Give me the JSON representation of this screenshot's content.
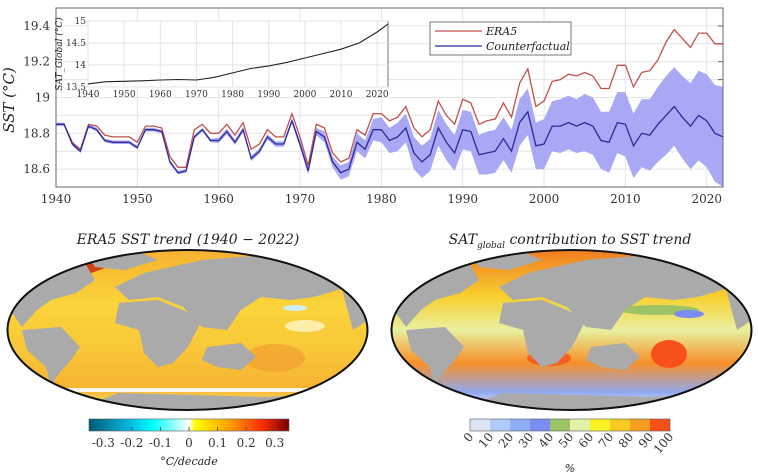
{
  "chart_data": [
    {
      "type": "line",
      "ylabel": "SST (°C)",
      "xlim": [
        1940,
        2022
      ],
      "ylim": [
        18.5,
        19.5
      ],
      "xticks": [
        1940,
        1950,
        1960,
        1970,
        1980,
        1990,
        2000,
        2010,
        2020
      ],
      "yticks": [
        18.6,
        18.8,
        19,
        19.2,
        19.4
      ],
      "yticks_labels": [
        "18.6",
        "18.8",
        "19",
        "19.2",
        "19.4"
      ],
      "grid": true,
      "legend_placement": "top-center",
      "x_start": 1940,
      "series": [
        {
          "name": "ERA5",
          "color": "#c0504d",
          "values": [
            18.85,
            18.85,
            18.75,
            18.71,
            18.85,
            18.84,
            18.79,
            18.78,
            18.78,
            18.78,
            18.75,
            18.84,
            18.84,
            18.83,
            18.67,
            18.61,
            18.61,
            18.82,
            18.85,
            18.8,
            18.8,
            18.85,
            18.79,
            18.86,
            18.71,
            18.74,
            18.82,
            18.78,
            18.78,
            18.91,
            18.78,
            18.62,
            18.85,
            18.83,
            18.69,
            18.64,
            18.66,
            18.82,
            18.79,
            18.91,
            18.91,
            18.87,
            18.89,
            18.95,
            18.83,
            18.78,
            18.82,
            18.98,
            18.9,
            18.85,
            18.99,
            18.97,
            18.85,
            18.87,
            18.88,
            18.97,
            18.89,
            19.08,
            19.16,
            18.95,
            18.98,
            19.09,
            19.1,
            19.13,
            19.12,
            19.14,
            19.12,
            19.05,
            19.05,
            19.18,
            19.18,
            19.06,
            19.14,
            19.15,
            19.21,
            19.31,
            19.38,
            19.33,
            19.28,
            19.36,
            19.36,
            19.3,
            19.3
          ]
        },
        {
          "name": "Counterfactual",
          "color": "#2b2b9a",
          "band_color": "#a8a8f4",
          "values": [
            18.85,
            18.85,
            18.74,
            18.7,
            18.84,
            18.82,
            18.76,
            18.75,
            18.75,
            18.75,
            18.72,
            18.82,
            18.82,
            18.81,
            18.64,
            18.58,
            18.59,
            18.78,
            18.82,
            18.76,
            18.76,
            18.81,
            18.75,
            18.82,
            18.66,
            18.7,
            18.78,
            18.74,
            18.74,
            18.87,
            18.74,
            18.59,
            18.81,
            18.78,
            18.64,
            18.58,
            18.6,
            18.75,
            18.71,
            18.82,
            18.82,
            18.76,
            18.78,
            18.83,
            18.69,
            18.64,
            18.68,
            18.83,
            18.75,
            18.69,
            18.82,
            18.81,
            18.68,
            18.69,
            18.7,
            18.77,
            18.7,
            18.86,
            18.92,
            18.73,
            18.74,
            18.84,
            18.84,
            18.86,
            18.84,
            18.86,
            18.84,
            18.76,
            18.75,
            18.86,
            18.85,
            18.73,
            18.8,
            18.79,
            18.85,
            18.9,
            18.95,
            18.89,
            18.84,
            18.9,
            18.87,
            18.8,
            18.78
          ],
          "spread": [
            0.01,
            0.01,
            0.01,
            0.01,
            0.01,
            0.01,
            0.01,
            0.01,
            0.01,
            0.01,
            0.01,
            0.01,
            0.01,
            0.01,
            0.01,
            0.01,
            0.01,
            0.01,
            0.01,
            0.01,
            0.015,
            0.015,
            0.015,
            0.015,
            0.015,
            0.015,
            0.015,
            0.015,
            0.015,
            0.015,
            0.02,
            0.02,
            0.02,
            0.03,
            0.03,
            0.04,
            0.04,
            0.05,
            0.05,
            0.06,
            0.07,
            0.07,
            0.08,
            0.08,
            0.09,
            0.09,
            0.09,
            0.1,
            0.1,
            0.1,
            0.11,
            0.11,
            0.11,
            0.12,
            0.12,
            0.12,
            0.12,
            0.13,
            0.13,
            0.13,
            0.14,
            0.14,
            0.15,
            0.15,
            0.15,
            0.16,
            0.16,
            0.16,
            0.17,
            0.17,
            0.18,
            0.18,
            0.19,
            0.2,
            0.21,
            0.22,
            0.22,
            0.23,
            0.24,
            0.25,
            0.26,
            0.27,
            0.28
          ]
        }
      ]
    },
    {
      "type": "line",
      "ylabel": "SAT_Global (°C)",
      "xlim": [
        1940,
        2023
      ],
      "ylim": [
        13.5,
        15
      ],
      "xticks": [
        1940,
        1950,
        1960,
        1970,
        1980,
        1990,
        2000,
        2010,
        2020
      ],
      "yticks": [
        13.5,
        14,
        14.5,
        15
      ],
      "yticks_labels": [
        "13.5",
        "14",
        "14.5",
        "15"
      ],
      "grid": true,
      "series": [
        {
          "color": "#222222",
          "x": [
            1940,
            1945,
            1950,
            1955,
            1960,
            1965,
            1970,
            1975,
            1980,
            1985,
            1990,
            1995,
            2000,
            2005,
            2010,
            2015,
            2020,
            2023
          ],
          "values": [
            13.57,
            13.62,
            13.63,
            13.64,
            13.66,
            13.67,
            13.66,
            13.72,
            13.82,
            13.92,
            13.98,
            14.06,
            14.16,
            14.26,
            14.36,
            14.5,
            14.75,
            14.93
          ]
        }
      ]
    },
    {
      "type": "heatmap",
      "title": "ERA5 SST trend (1940 − 2022)",
      "projection": "robinson",
      "colorbar": {
        "ticks": [
          "-0.3",
          "-0.2",
          "-0.1",
          "0",
          "0.1",
          "0.2",
          "0.3"
        ],
        "label": "°C/decade",
        "range": [
          -0.35,
          0.35
        ],
        "colors": [
          "#005a78",
          "#00b8e0",
          "#00ffff",
          "#ffffff",
          "#ffff00",
          "#ffa000",
          "#ff3000",
          "#780000"
        ]
      }
    },
    {
      "type": "heatmap",
      "title_main": "SAT",
      "title_sub": "global",
      "title_rest": " contribution to SST trend",
      "projection": "robinson",
      "colorbar": {
        "ticks": [
          "0",
          "10",
          "20",
          "30",
          "40",
          "50",
          "60",
          "70",
          "80",
          "90",
          "100"
        ],
        "label": "%",
        "colors": [
          "#dce6f4",
          "#b0c8fa",
          "#8eaefa",
          "#7c8cf2",
          "#9cc466",
          "#e2f2a6",
          "#f8f222",
          "#f8ca22",
          "#f89e22",
          "#f8501a"
        ]
      }
    }
  ]
}
